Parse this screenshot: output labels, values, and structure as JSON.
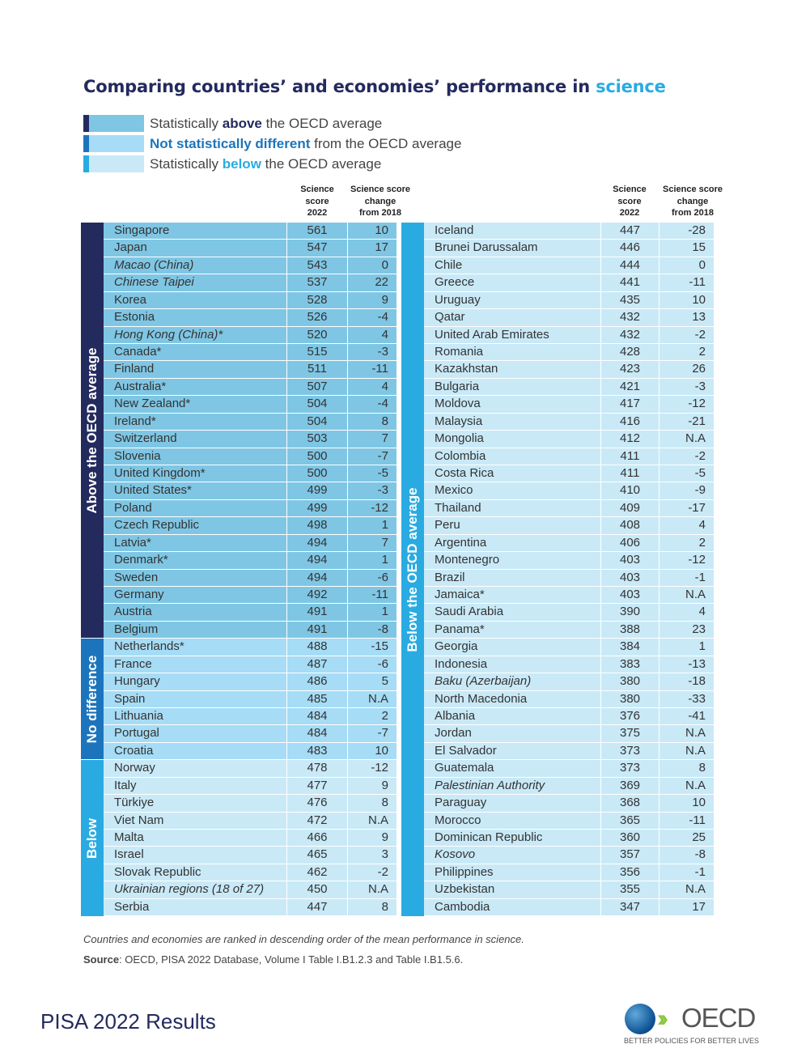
{
  "title_pre": "Comparing countries’ and economies’ performance in ",
  "title_hl": "science",
  "legend": [
    {
      "pre": "Statistically ",
      "bold": "above",
      "post": " the OECD average",
      "bar": "#232a5e",
      "fill": "#7fc6e4",
      "boldColor": "#232a5e"
    },
    {
      "pre": "",
      "bold": "Not statistically different",
      "post": " from the OECD average",
      "bar": "#1c75bc",
      "fill": "#a6dcf5",
      "boldColor": "#1c75bc"
    },
    {
      "pre": "Statistically ",
      "bold": "below",
      "post": " the OECD average",
      "bar": "#29abe2",
      "fill": "#c9e9f7",
      "boldColor": "#29abe2"
    }
  ],
  "headers": {
    "score": [
      "Science",
      "score",
      "2022"
    ],
    "change": [
      "Science score",
      "change",
      "from 2018"
    ]
  },
  "groups": {
    "above": {
      "label": "Above the OECD average",
      "side": "#232a5e",
      "fill": "#7fc6e4"
    },
    "nodiff": {
      "label": "No difference",
      "side": "#1c75bc",
      "fill": "#a6dcf5"
    },
    "below": {
      "label": "Below",
      "side": "#29abe2",
      "fill": "#c9e9f7"
    },
    "below_right": {
      "label": "Below the OECD average",
      "side": "#29abe2",
      "fill": "#c9e9f7"
    }
  },
  "left": [
    [
      "Singapore",
      "561",
      "10",
      "above"
    ],
    [
      "Japan",
      "547",
      "17",
      "above"
    ],
    [
      "Macao (China)",
      "543",
      "0",
      "above",
      1
    ],
    [
      "Chinese Taipei",
      "537",
      "22",
      "above",
      1
    ],
    [
      "Korea",
      "528",
      "9",
      "above"
    ],
    [
      "Estonia",
      "526",
      "-4",
      "above"
    ],
    [
      "Hong Kong (China)*",
      "520",
      "4",
      "above",
      1
    ],
    [
      "Canada*",
      "515",
      "-3",
      "above"
    ],
    [
      "Finland",
      "511",
      "-11",
      "above"
    ],
    [
      "Australia*",
      "507",
      "4",
      "above"
    ],
    [
      "New Zealand*",
      "504",
      "-4",
      "above"
    ],
    [
      "Ireland*",
      "504",
      "8",
      "above"
    ],
    [
      "Switzerland",
      "503",
      "7",
      "above"
    ],
    [
      "Slovenia",
      "500",
      "-7",
      "above"
    ],
    [
      "United Kingdom*",
      "500",
      "-5",
      "above"
    ],
    [
      "United States*",
      "499",
      "-3",
      "above"
    ],
    [
      "Poland",
      "499",
      "-12",
      "above"
    ],
    [
      "Czech Republic",
      "498",
      "1",
      "above"
    ],
    [
      "Latvia*",
      "494",
      "7",
      "above"
    ],
    [
      "Denmark*",
      "494",
      "1",
      "above"
    ],
    [
      "Sweden",
      "494",
      "-6",
      "above"
    ],
    [
      "Germany",
      "492",
      "-11",
      "above"
    ],
    [
      "Austria",
      "491",
      "1",
      "above"
    ],
    [
      "Belgium",
      "491",
      "-8",
      "above"
    ],
    [
      "Netherlands*",
      "488",
      "-15",
      "nodiff"
    ],
    [
      "France",
      "487",
      "-6",
      "nodiff"
    ],
    [
      "Hungary",
      "486",
      "5",
      "nodiff"
    ],
    [
      "Spain",
      "485",
      "N.A",
      "nodiff"
    ],
    [
      "Lithuania",
      "484",
      "2",
      "nodiff"
    ],
    [
      "Portugal",
      "484",
      "-7",
      "nodiff"
    ],
    [
      "Croatia",
      "483",
      "10",
      "nodiff"
    ],
    [
      "Norway",
      "478",
      "-12",
      "below"
    ],
    [
      "Italy",
      "477",
      "9",
      "below"
    ],
    [
      "Türkiye",
      "476",
      "8",
      "below"
    ],
    [
      "Viet Nam",
      "472",
      "N.A",
      "below"
    ],
    [
      "Malta",
      "466",
      "9",
      "below"
    ],
    [
      "Israel",
      "465",
      "3",
      "below"
    ],
    [
      "Slovak Republic",
      "462",
      "-2",
      "below"
    ],
    [
      "Ukrainian regions (18 of 27)",
      "450",
      "N.A",
      "below",
      1
    ],
    [
      "Serbia",
      "447",
      "8",
      "below"
    ]
  ],
  "right": [
    [
      "Iceland",
      "447",
      "-28"
    ],
    [
      "Brunei Darussalam",
      "446",
      "15"
    ],
    [
      "Chile",
      "444",
      "0"
    ],
    [
      "Greece",
      "441",
      "-11"
    ],
    [
      "Uruguay",
      "435",
      "10"
    ],
    [
      "Qatar",
      "432",
      "13"
    ],
    [
      "United Arab Emirates",
      "432",
      "-2"
    ],
    [
      "Romania",
      "428",
      "2"
    ],
    [
      "Kazakhstan",
      "423",
      "26"
    ],
    [
      "Bulgaria",
      "421",
      "-3"
    ],
    [
      "Moldova",
      "417",
      "-12"
    ],
    [
      "Malaysia",
      "416",
      "-21"
    ],
    [
      "Mongolia",
      "412",
      "N.A"
    ],
    [
      "Colombia",
      "411",
      "-2"
    ],
    [
      "Costa Rica",
      "411",
      "-5"
    ],
    [
      "Mexico",
      "410",
      "-9"
    ],
    [
      "Thailand",
      "409",
      "-17"
    ],
    [
      "Peru",
      "408",
      "4"
    ],
    [
      "Argentina",
      "406",
      "2"
    ],
    [
      "Montenegro",
      "403",
      "-12"
    ],
    [
      "Brazil",
      "403",
      "-1"
    ],
    [
      "Jamaica*",
      "403",
      "N.A"
    ],
    [
      "Saudi Arabia",
      "390",
      "4"
    ],
    [
      "Panama*",
      "388",
      "23"
    ],
    [
      "Georgia",
      "384",
      "1"
    ],
    [
      "Indonesia",
      "383",
      "-13"
    ],
    [
      "Baku (Azerbaijan)",
      "380",
      "-18",
      1
    ],
    [
      "North Macedonia",
      "380",
      "-33"
    ],
    [
      "Albania",
      "376",
      "-41"
    ],
    [
      "Jordan",
      "375",
      "N.A"
    ],
    [
      "El Salvador",
      "373",
      "N.A"
    ],
    [
      "Guatemala",
      "373",
      "8"
    ],
    [
      "Palestinian Authority",
      "369",
      "N.A",
      1
    ],
    [
      "Paraguay",
      "368",
      "10"
    ],
    [
      "Morocco",
      "365",
      "-11"
    ],
    [
      "Dominican Republic",
      "360",
      "25"
    ],
    [
      "Kosovo",
      "357",
      "-8",
      1
    ],
    [
      "Philippines",
      "356",
      "-1"
    ],
    [
      "Uzbekistan",
      "355",
      "N.A"
    ],
    [
      "Cambodia",
      "347",
      "17"
    ]
  ],
  "note": "Countries and economies are ranked in descending order of the mean performance in science.",
  "source_label": "Source",
  "source_text": ": OECD, PISA 2022 Database, Volume I Table I.B1.2.3 and Table I.B1.5.6.",
  "footer": "PISA 2022 Results",
  "logo": {
    "name": "OECD",
    "tagline": "BETTER POLICIES FOR BETTER LIVES"
  }
}
